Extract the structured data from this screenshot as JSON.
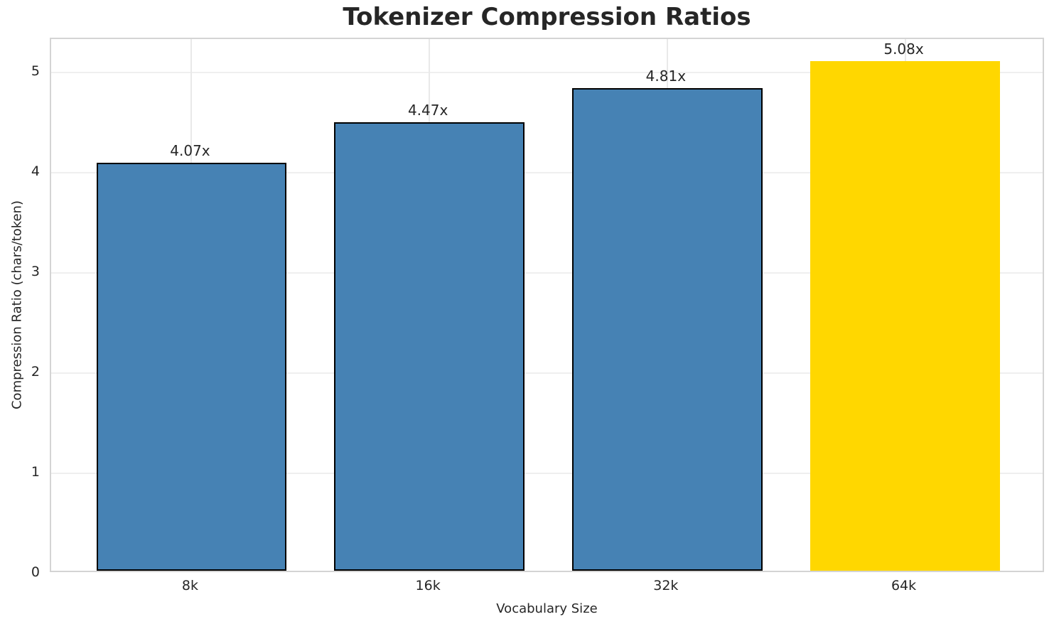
{
  "title": "Tokenizer Compression Ratios",
  "colors": {
    "bar": "#4682B4",
    "highlight_bar": "#FFD700",
    "bar_edge": "#000000",
    "grid": "#EFEFEF",
    "spine": "#D4D4D4",
    "text": "#262626"
  },
  "chart_data": {
    "type": "bar",
    "title": "Tokenizer Compression Ratios",
    "xlabel": "Vocabulary Size",
    "ylabel": "Compression Ratio (chars/token)",
    "categories": [
      "8k",
      "16k",
      "32k",
      "64k"
    ],
    "values": [
      4.07,
      4.47,
      4.81,
      5.08
    ],
    "bar_labels": [
      "4.07x",
      "4.47x",
      "4.81x",
      "5.08x"
    ],
    "bar_colors": [
      "#4682B4",
      "#4682B4",
      "#4682B4",
      "#FFD700"
    ],
    "bar_edge_widths": [
      2,
      2,
      2,
      0
    ],
    "highlight_index": 3,
    "ylim": [
      0,
      5.33
    ],
    "yticks": [
      0,
      1,
      2,
      3,
      4,
      5
    ],
    "ytick_labels": [
      "0",
      "1",
      "2",
      "3",
      "4",
      "5"
    ],
    "grid": true,
    "legend_position": "none"
  }
}
